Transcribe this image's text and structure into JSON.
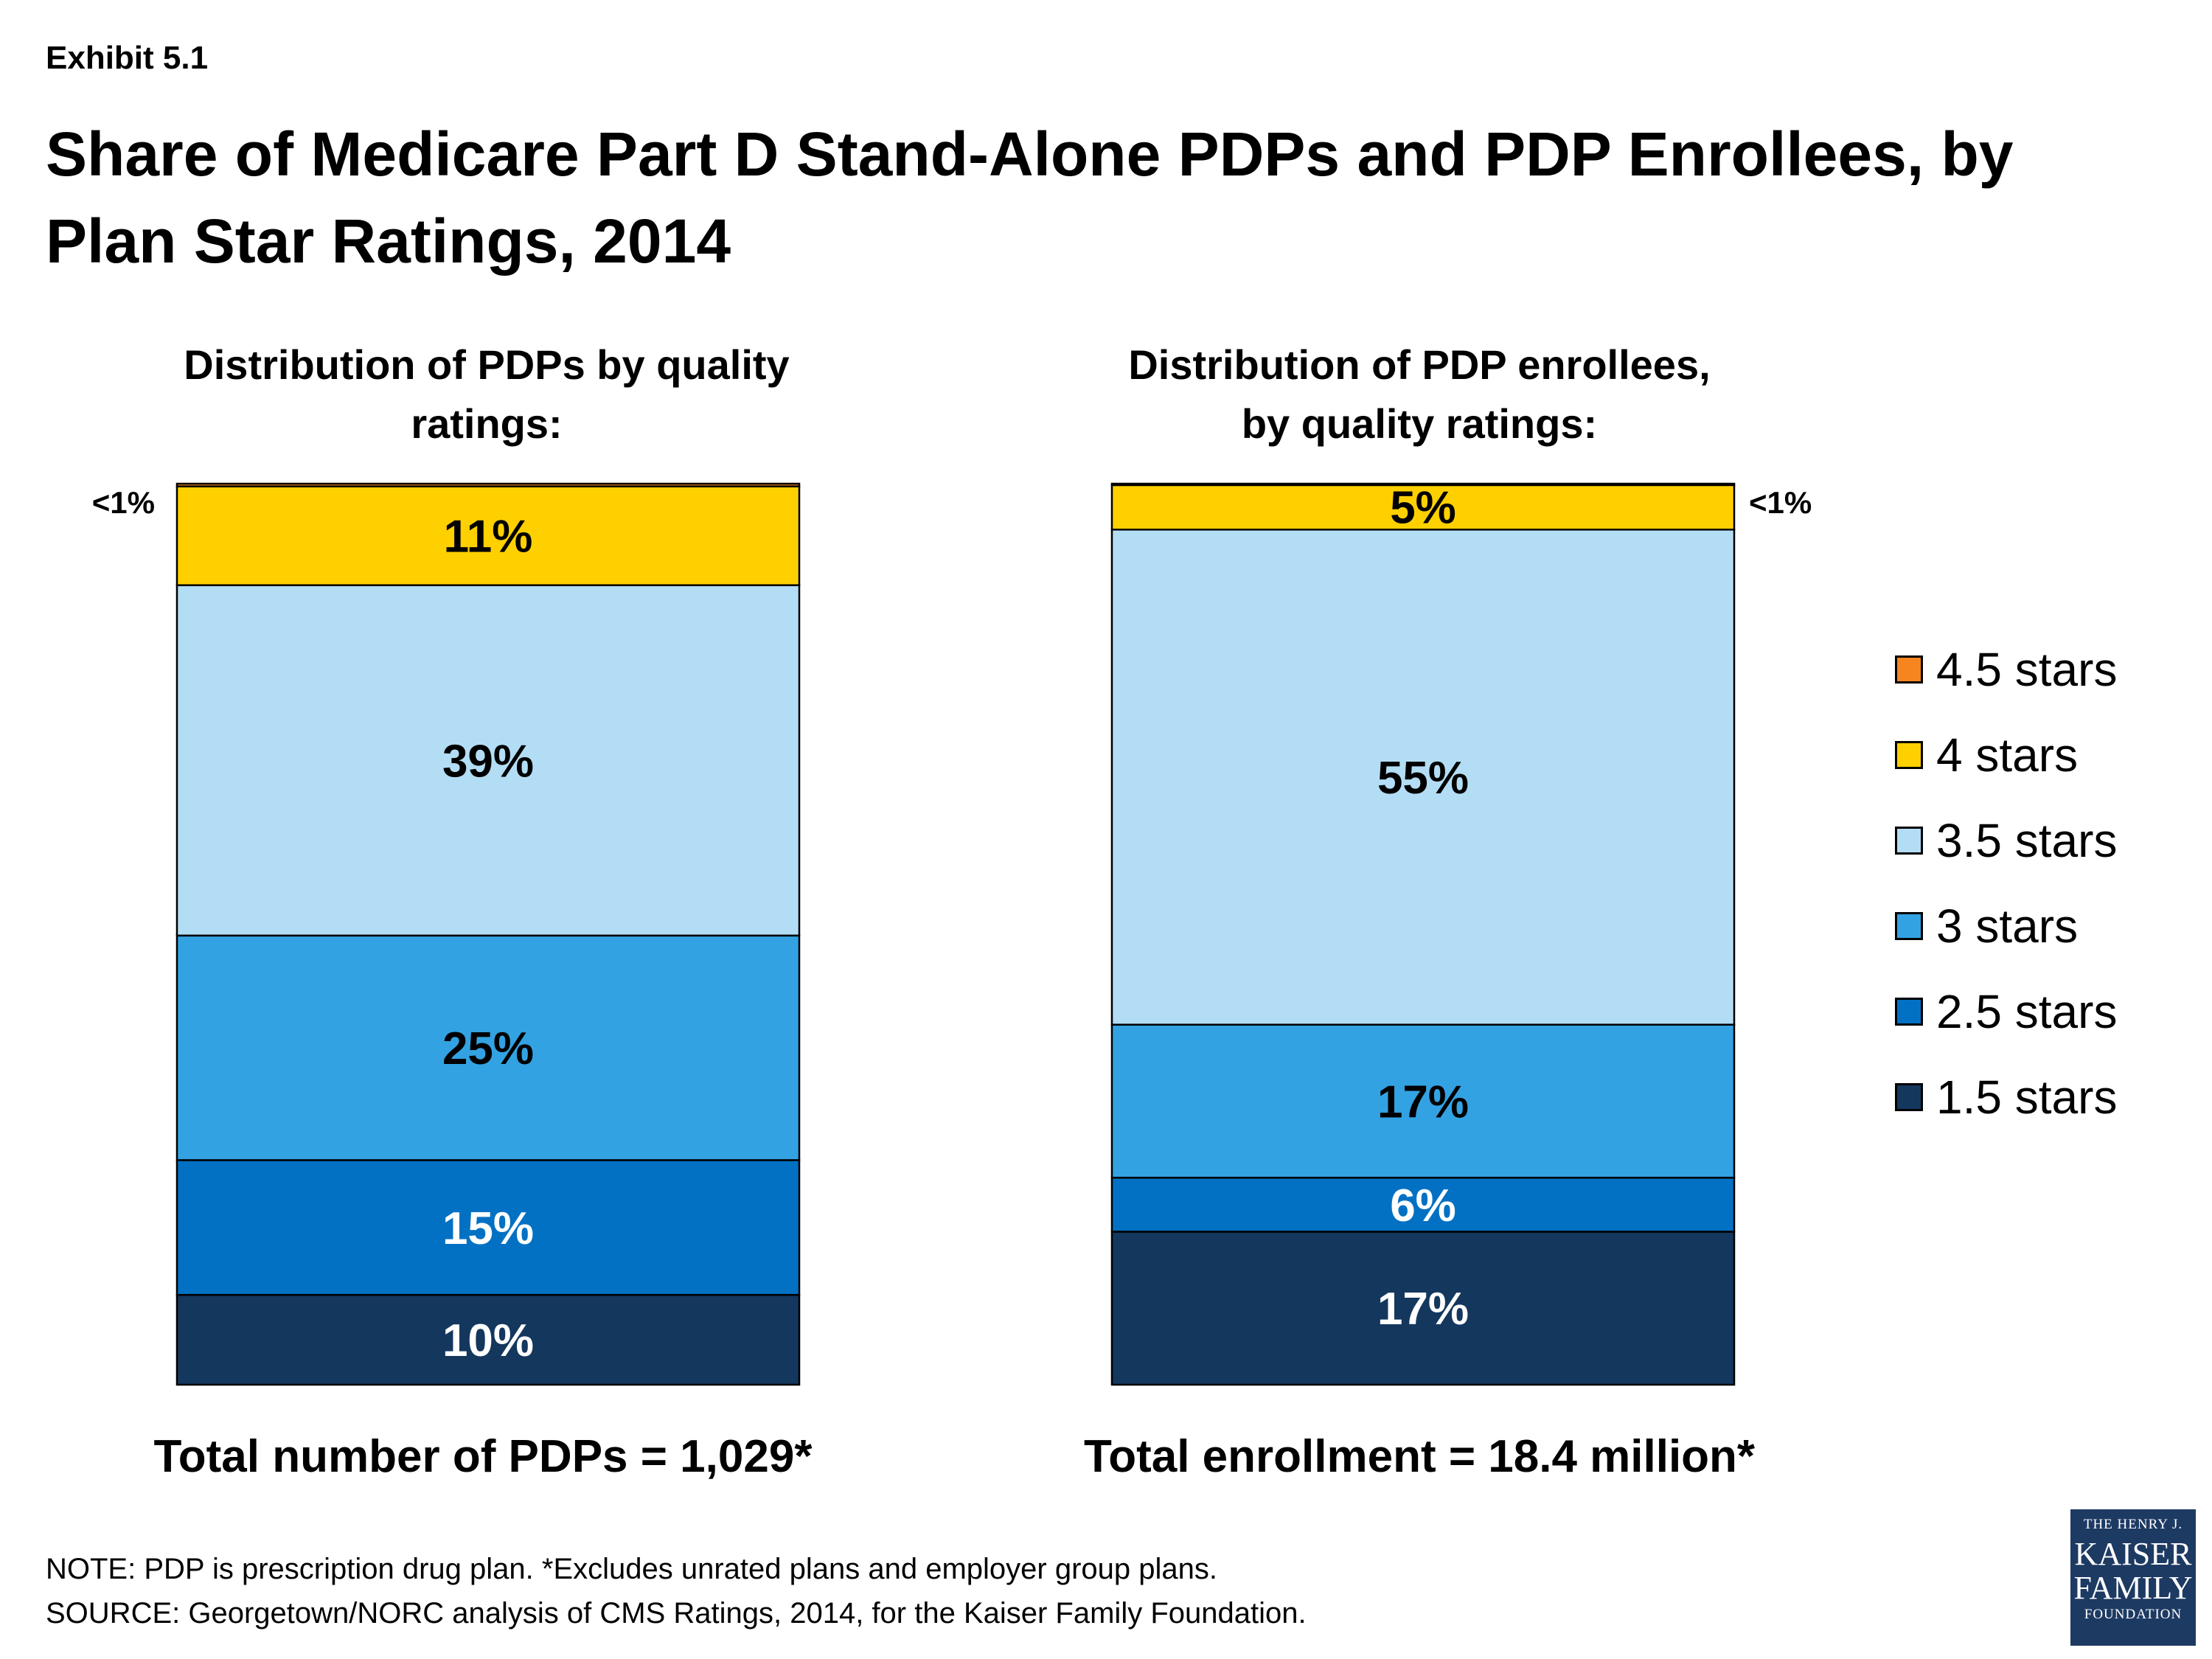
{
  "header": {
    "exhibit": "Exhibit 5.1",
    "title": "Share of Medicare Part D Stand-Alone PDPs and PDP Enrollees, by Plan Star Ratings, 2014"
  },
  "chart_data": [
    {
      "type": "bar",
      "stacked": true,
      "title": "Distribution of PDPs by quality ratings:",
      "total_label": "Total number of PDPs = 1,029*",
      "segments": [
        {
          "name": "1.5 stars",
          "value": 10,
          "label": "10%",
          "color": "#14375e",
          "label_color": "#ffffff"
        },
        {
          "name": "2.5 stars",
          "value": 15,
          "label": "15%",
          "color": "#0271c4",
          "label_color": "#ffffff"
        },
        {
          "name": "3 stars",
          "value": 25,
          "label": "25%",
          "color": "#33a2e2",
          "label_color": "#000000"
        },
        {
          "name": "3.5 stars",
          "value": 39,
          "label": "39%",
          "color": "#b3ddf4",
          "label_color": "#000000"
        },
        {
          "name": "4 stars",
          "value": 11,
          "label": "11%",
          "color": "#ffd000",
          "label_color": "#000000"
        },
        {
          "name": "4.5 stars",
          "value": 0.3,
          "label": "<1%",
          "color": "#f6851f",
          "label_color": "#000000",
          "outside_label": "left"
        }
      ]
    },
    {
      "type": "bar",
      "stacked": true,
      "title": "Distribution of PDP enrollees, by quality ratings:",
      "total_label": "Total enrollment = 18.4 million*",
      "segments": [
        {
          "name": "1.5 stars",
          "value": 17,
          "label": "17%",
          "color": "#14375e",
          "label_color": "#ffffff"
        },
        {
          "name": "2.5 stars",
          "value": 6,
          "label": "6%",
          "color": "#0271c4",
          "label_color": "#ffffff"
        },
        {
          "name": "3 stars",
          "value": 17,
          "label": "17%",
          "color": "#33a2e2",
          "label_color": "#000000"
        },
        {
          "name": "3.5 stars",
          "value": 55,
          "label": "55%",
          "color": "#b3ddf4",
          "label_color": "#000000"
        },
        {
          "name": "4 stars",
          "value": 5,
          "label": "5%",
          "color": "#ffd000",
          "label_color": "#000000"
        },
        {
          "name": "4.5 stars",
          "value": 0.1,
          "label": "<1%",
          "color": "#f6851f",
          "label_color": "#000000",
          "outside_label": "right"
        }
      ]
    }
  ],
  "legend": [
    {
      "label": "4.5 stars",
      "color": "#f6851f"
    },
    {
      "label": "4 stars",
      "color": "#ffd000"
    },
    {
      "label": "3.5 stars",
      "color": "#b3ddf4"
    },
    {
      "label": "3 stars",
      "color": "#33a2e2"
    },
    {
      "label": "2.5 stars",
      "color": "#0271c4"
    },
    {
      "label": "1.5 stars",
      "color": "#14375e"
    }
  ],
  "notes": {
    "note": "NOTE: PDP is prescription drug plan. *Excludes unrated plans and employer group plans.",
    "source": "SOURCE: Georgetown/NORC analysis of CMS Ratings, 2014, for the Kaiser Family Foundation."
  },
  "logo": {
    "line1": "THE HENRY J.",
    "line2": "KAISER",
    "line3": "FAMILY",
    "line4": "FOUNDATION"
  }
}
